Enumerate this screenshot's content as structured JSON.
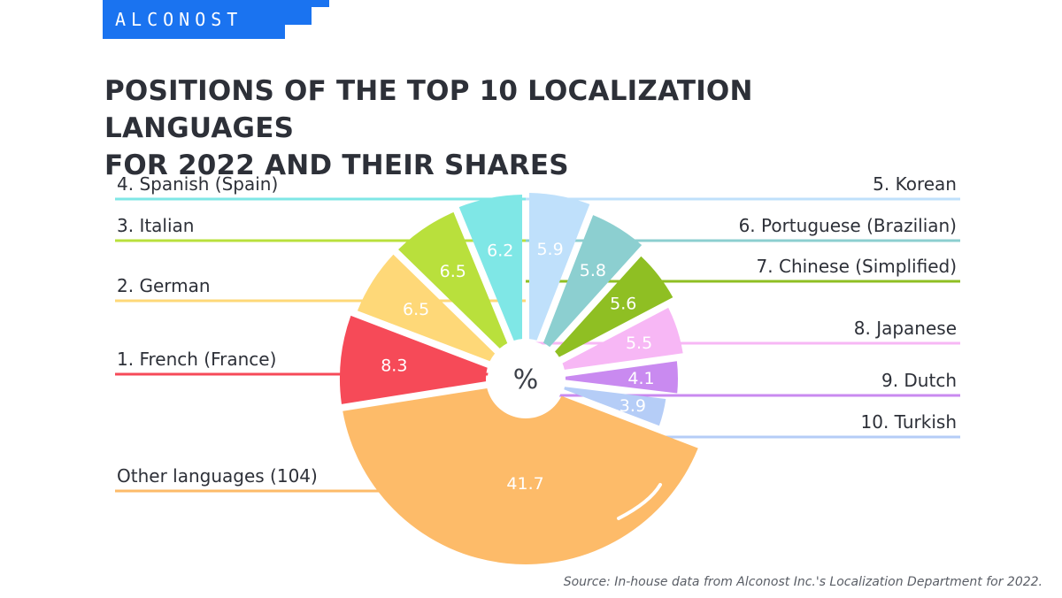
{
  "brand": {
    "name": "ALCONOST",
    "color": "#1a73f0"
  },
  "title_lines": [
    "POSITIONS OF THE TOP 10 LOCALIZATION LANGUAGES",
    "FOR 2022 AND THEIR SHARES"
  ],
  "source": "Source: In-house data from Alconost Inc.'s Localization Department for 2022.",
  "chart_data": {
    "type": "pie",
    "center_label": "%",
    "title": "POSITIONS OF THE TOP 10 LOCALIZATION LANGUAGES FOR 2022 AND THEIR SHARES",
    "legend": "labels outside slices, left and right",
    "categories": [
      "5. Korean",
      "6. Portuguese (Brazilian)",
      "7. Chinese (Simplified)",
      "8. Japanese",
      "9. Dutch",
      "10. Turkish",
      "Other languages (104)",
      "1. French (France)",
      "2. German",
      "3. Italian",
      "4. Spanish (Spain)"
    ],
    "values": [
      5.9,
      5.8,
      5.6,
      5.5,
      4.1,
      3.9,
      41.7,
      8.3,
      6.5,
      6.5,
      6.2
    ],
    "value_labels": [
      "5.9",
      "5.8",
      "5.6",
      "5.5",
      "4.1",
      "3.9",
      "41.7",
      "8.3",
      "6.5",
      "6.5",
      "6.2"
    ],
    "colors": [
      "#bfe0fb",
      "#8ccfd0",
      "#8fbf23",
      "#f7b7f5",
      "#c98af0",
      "#b5cdf7",
      "#fdbb69",
      "#f64a58",
      "#fed878",
      "#b9e03c",
      "#7fe7e6"
    ]
  }
}
